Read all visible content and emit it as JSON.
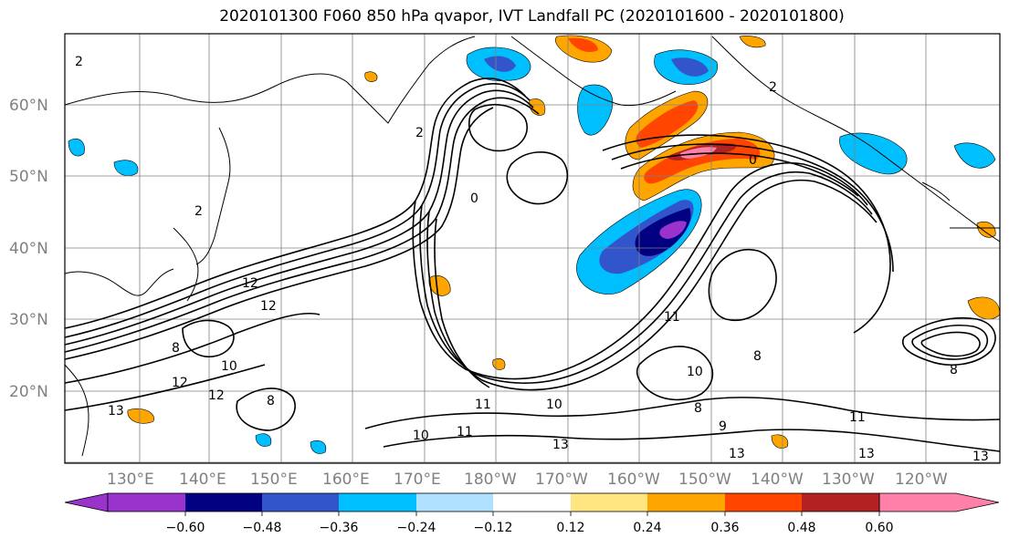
{
  "title": "2020101300 F060 850 hPa qvapor, IVT Landfall PC (2020101600 - 2020101800)",
  "lat_labels": [
    "60°N",
    "50°N",
    "40°N",
    "30°N",
    "20°N"
  ],
  "lon_labels": [
    "130°E",
    "140°E",
    "150°E",
    "160°E",
    "170°E",
    "180°W",
    "170°W",
    "160°W",
    "150°W",
    "140°W",
    "130°W",
    "120°W"
  ],
  "contour_labels": [
    "2",
    "2",
    "2",
    "0",
    "12",
    "12",
    "8",
    "10",
    "12",
    "13",
    "8",
    "12",
    "11",
    "10",
    "11",
    "13",
    "10",
    "11",
    "8",
    "10",
    "8",
    "9",
    "13",
    "13",
    "13",
    "11",
    "8",
    "2",
    "0"
  ],
  "colorbar": {
    "colors": [
      "#9933cc",
      "#000080",
      "#3355cc",
      "#00bfff",
      "#b0e0ff",
      "#ffffff",
      "#ffe680",
      "#ffa500",
      "#ff4500",
      "#b22222",
      "#ff80a8"
    ],
    "ticks": [
      "−0.60",
      "−0.48",
      "−0.36",
      "−0.24",
      "−0.12",
      "0.12",
      "0.24",
      "0.36",
      "0.48",
      "0.60"
    ]
  },
  "features": {
    "positive_anomaly_color": "#ff4500",
    "negative_anomaly_color": "#000080",
    "contour_color": "#000000",
    "coastline_color": "#000000",
    "gridline_color": "#808080"
  }
}
